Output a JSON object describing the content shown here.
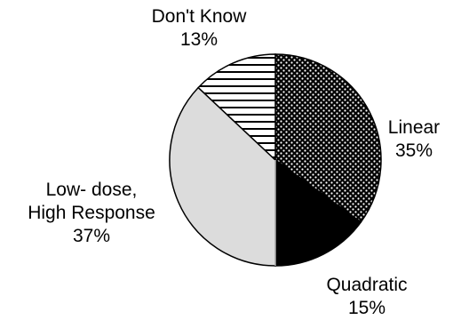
{
  "chart_data": {
    "type": "pie",
    "title": "",
    "slices": [
      {
        "label_lines": [
          "Linear",
          "35%"
        ],
        "value": 35,
        "pattern": "dots"
      },
      {
        "label_lines": [
          "Quadratic",
          "15%"
        ],
        "value": 15,
        "pattern": "solid-black"
      },
      {
        "label_lines": [
          "Low- dose,",
          "High Response",
          "37%"
        ],
        "value": 37,
        "pattern": "light-gray"
      },
      {
        "label_lines": [
          "Don't Know",
          "13%"
        ],
        "value": 13,
        "pattern": "horizontal-stripes"
      }
    ],
    "start_direction": "top",
    "direction": "clockwise",
    "legend": "none"
  },
  "colors": {
    "outline": "#000000",
    "black_fill": "#000000",
    "gray_fill": "#dcdcdc",
    "white": "#ffffff"
  }
}
